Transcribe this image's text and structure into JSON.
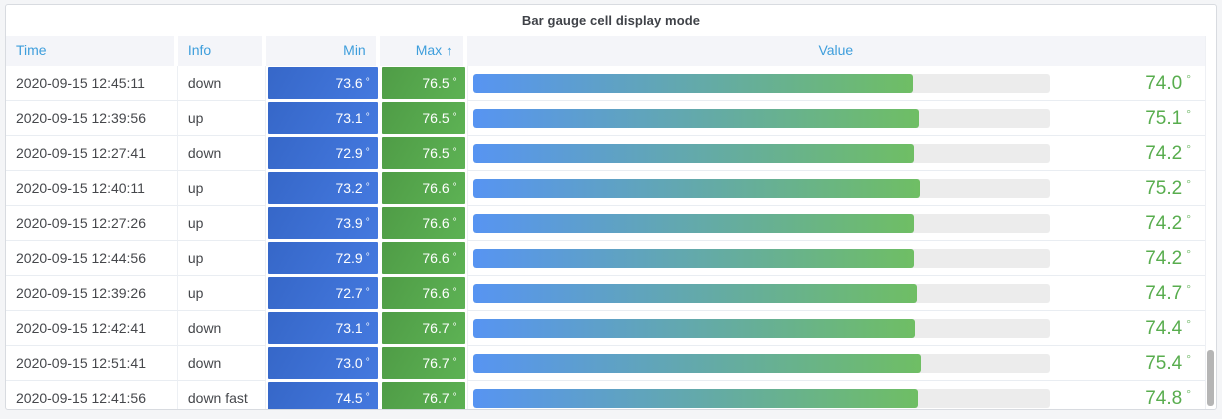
{
  "panel": {
    "title": "Bar gauge cell display mode"
  },
  "table": {
    "unit": "°",
    "columns": [
      {
        "label": "Time",
        "align": "left"
      },
      {
        "label": "Info",
        "align": "left"
      },
      {
        "label": "Min",
        "align": "right"
      },
      {
        "label": "Max",
        "align": "right",
        "sort_arrow": "↑"
      },
      {
        "label": "Value",
        "align": "center"
      }
    ],
    "rows": [
      {
        "time": "2020-09-15 12:45:11",
        "info": "down",
        "min": "73.6",
        "max": "76.5",
        "value": "74.0",
        "bar_pct": 76.3
      },
      {
        "time": "2020-09-15 12:39:56",
        "info": "up",
        "min": "73.1",
        "max": "76.5",
        "value": "75.1",
        "bar_pct": 77.4
      },
      {
        "time": "2020-09-15 12:27:41",
        "info": "down",
        "min": "72.9",
        "max": "76.5",
        "value": "74.2",
        "bar_pct": 76.5
      },
      {
        "time": "2020-09-15 12:40:11",
        "info": "up",
        "min": "73.2",
        "max": "76.6",
        "value": "75.2",
        "bar_pct": 77.5
      },
      {
        "time": "2020-09-15 12:27:26",
        "info": "up",
        "min": "73.9",
        "max": "76.6",
        "value": "74.2",
        "bar_pct": 76.5
      },
      {
        "time": "2020-09-15 12:44:56",
        "info": "up",
        "min": "72.9",
        "max": "76.6",
        "value": "74.2",
        "bar_pct": 76.5
      },
      {
        "time": "2020-09-15 12:39:26",
        "info": "up",
        "min": "72.7",
        "max": "76.6",
        "value": "74.7",
        "bar_pct": 77.0
      },
      {
        "time": "2020-09-15 12:42:41",
        "info": "down",
        "min": "73.1",
        "max": "76.7",
        "value": "74.4",
        "bar_pct": 76.7
      },
      {
        "time": "2020-09-15 12:51:41",
        "info": "down",
        "min": "73.0",
        "max": "76.7",
        "value": "75.4",
        "bar_pct": 77.7
      },
      {
        "time": "2020-09-15 12:41:56",
        "info": "down fast",
        "min": "74.5",
        "max": "76.7",
        "value": "74.8",
        "bar_pct": 77.1
      }
    ]
  },
  "colors": {
    "title_text": "#3f4248",
    "header_text": "#3e9edc",
    "cell_text": "#45474b",
    "min_cell_from": "#3667c8",
    "min_cell_to": "#4479df",
    "max_cell_from": "#4f9c46",
    "max_cell_to": "#5db254",
    "bar_from": "#5794f2",
    "bar_to": "#6fbe64",
    "bar_track": "#ececec",
    "value_text": "#58ad4e"
  }
}
